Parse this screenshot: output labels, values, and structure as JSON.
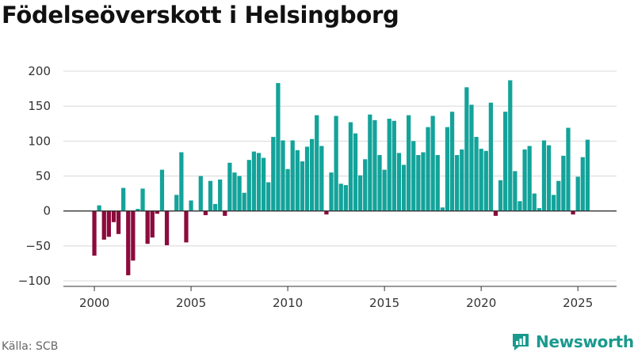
{
  "title": "Födelseöverskott i Helsingborg",
  "source": "Källa: SCB",
  "brand": "Newsworthy",
  "colors": {
    "positive": "#13a39a",
    "negative": "#8c0a3c",
    "axis": "#333333",
    "grid": "#d8d8d8",
    "brand": "#1a9a8e"
  },
  "chart_data": {
    "type": "bar",
    "title": "Födelseöverskott i Helsingborg",
    "xlabel": "",
    "ylabel": "",
    "ylim": [
      -100,
      200
    ],
    "xlim": [
      1998.4,
      2027.0
    ],
    "yticks": [
      -100,
      -50,
      0,
      50,
      100,
      150,
      200
    ],
    "ytick_labels": [
      "−100",
      "−50",
      "0",
      "50",
      "100",
      "150",
      "200"
    ],
    "xticks": [
      2000,
      2005,
      2010,
      2015,
      2020,
      2025
    ],
    "xtick_labels": [
      "2000",
      "2005",
      "2010",
      "2015",
      "2020",
      "2025"
    ],
    "frequency": "quarterly",
    "start": 2000.0,
    "step": 0.25,
    "values": [
      -64,
      8,
      -41,
      -37,
      -16,
      -33,
      33,
      -92,
      -71,
      3,
      32,
      -47,
      -38,
      -4,
      59,
      -49,
      0,
      23,
      84,
      -45,
      15,
      0,
      50,
      -6,
      43,
      10,
      45,
      -7,
      69,
      55,
      50,
      26,
      73,
      85,
      83,
      76,
      41,
      106,
      183,
      101,
      60,
      101,
      87,
      71,
      92,
      103,
      137,
      93,
      -5,
      55,
      136,
      39,
      37,
      127,
      111,
      51,
      74,
      138,
      130,
      80,
      59,
      132,
      129,
      83,
      66,
      137,
      100,
      80,
      84,
      120,
      136,
      80,
      5,
      120,
      142,
      80,
      88,
      177,
      152,
      106,
      89,
      86,
      155,
      -7,
      44,
      142,
      187,
      57,
      14,
      88,
      93,
      25,
      4,
      101,
      94,
      23,
      43,
      79,
      119,
      -5,
      49,
      77,
      102
    ]
  }
}
